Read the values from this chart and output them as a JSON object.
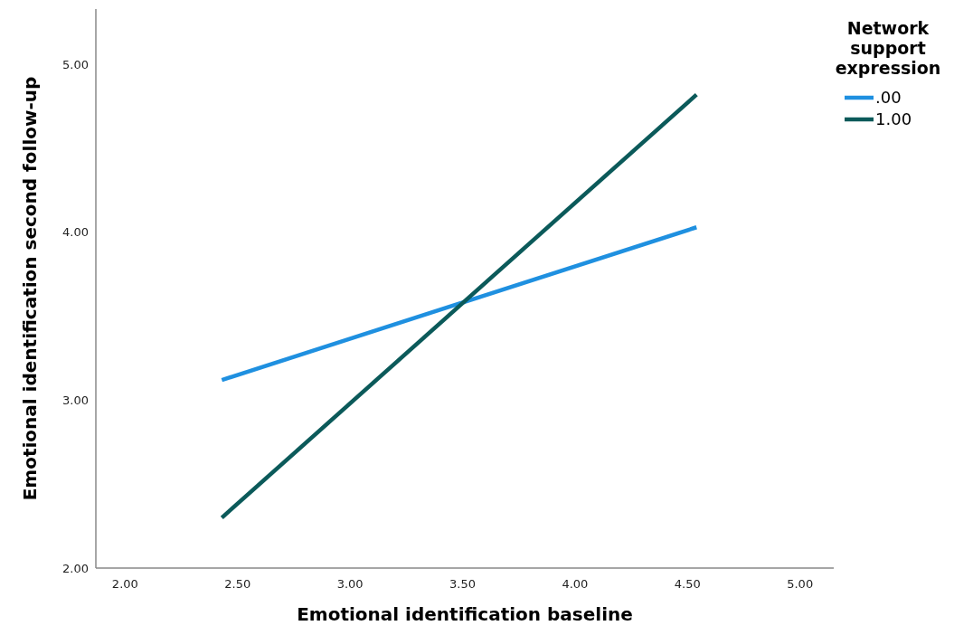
{
  "chart_data": {
    "type": "line",
    "xlabel": "Emotional identification baseline",
    "ylabel": "Emotional identification second follow-up",
    "legend_title": "Network support expression",
    "legend": "right",
    "xlim": [
      1.87,
      5.15
    ],
    "ylim": [
      2,
      5.33
    ],
    "xticks": [
      {
        "value": 2,
        "label": "2.00"
      },
      {
        "value": 2.5,
        "label": "2.50"
      },
      {
        "value": 3,
        "label": "3.00"
      },
      {
        "value": 3.5,
        "label": "3.50"
      },
      {
        "value": 4,
        "label": "4.00"
      },
      {
        "value": 4.5,
        "label": "4.50"
      },
      {
        "value": 5,
        "label": "5.00"
      }
    ],
    "yticks": [
      {
        "value": 2,
        "label": "2.00"
      },
      {
        "value": 3,
        "label": "3.00"
      },
      {
        "value": 4,
        "label": "4.00"
      },
      {
        "value": 5,
        "label": "5.00"
      }
    ],
    "x": [
      2.43,
      4.54
    ],
    "series": [
      {
        "name": ".00",
        "color": "#1f90e0",
        "values": [
          3.12,
          4.03
        ]
      },
      {
        "name": "1.00",
        "color": "#0b5a5a",
        "values": [
          2.3,
          4.82
        ]
      }
    ]
  }
}
